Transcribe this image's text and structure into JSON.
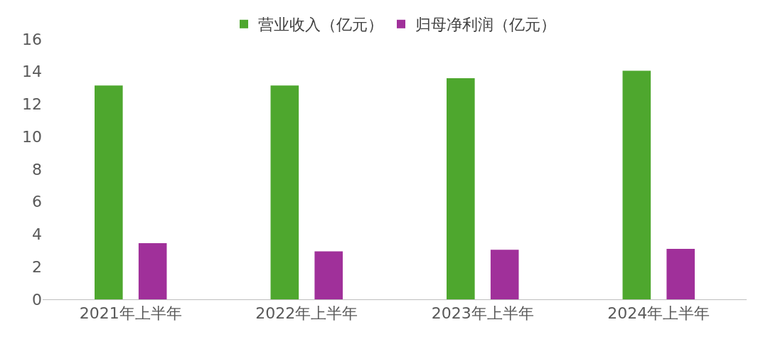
{
  "chart_data": {
    "type": "bar",
    "categories": [
      "2021年上半年",
      "2022年上半年",
      "2023年上半年",
      "2024年上半年"
    ],
    "series": [
      {
        "name": "营业收入（亿元）",
        "color": "#4ea72e",
        "values": [
          13.15,
          13.15,
          13.6,
          14.05
        ]
      },
      {
        "name": "归母净利润（亿元）",
        "color": "#a0309a",
        "values": [
          3.45,
          2.95,
          3.05,
          3.1
        ]
      }
    ],
    "ylim": [
      0,
      16
    ],
    "yticks": [
      0,
      2,
      4,
      6,
      8,
      10,
      12,
      14,
      16
    ],
    "legend": "top"
  }
}
